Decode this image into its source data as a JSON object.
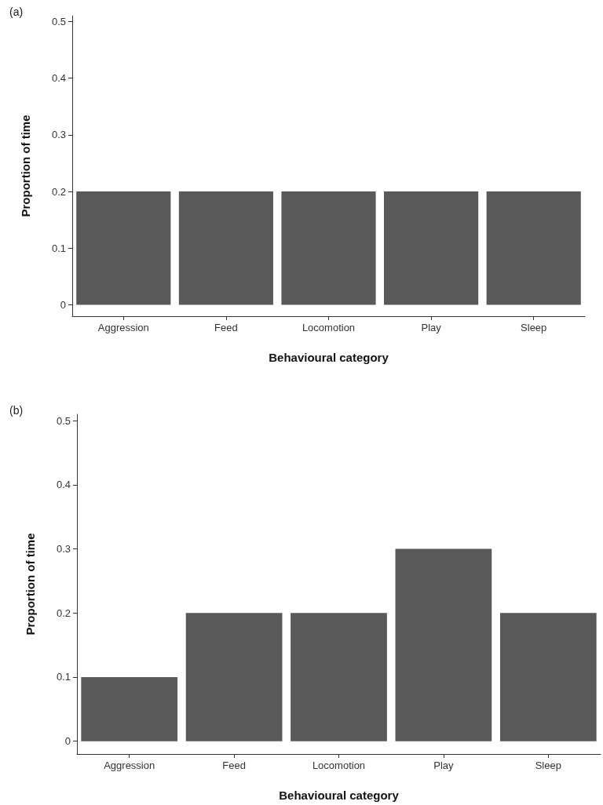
{
  "chart_data": [
    {
      "type": "bar",
      "annotations": [
        "(a)"
      ],
      "xlabel": "Behavioural category",
      "ylabel": "Proportion of time",
      "categories": [
        "Aggression",
        "Feed",
        "Locomotion",
        "Play",
        "Sleep"
      ],
      "values": [
        0.2,
        0.2,
        0.2,
        0.2,
        0.2
      ],
      "color": "#595959",
      "ylim": [
        -0.02,
        0.51
      ],
      "yticks": [
        0,
        0.1,
        0.2,
        0.3,
        0.4,
        0.5
      ],
      "grid": false
    },
    {
      "type": "bar",
      "annotations": [
        "(b)"
      ],
      "xlabel": "Behavioural category",
      "ylabel": "Proportion of time",
      "categories": [
        "Aggression",
        "Feed",
        "Locomotion",
        "Play",
        "Sleep"
      ],
      "values": [
        0.1,
        0.2,
        0.2,
        0.3,
        0.2
      ],
      "color": "#595959",
      "ylim": [
        -0.02,
        0.51
      ],
      "yticks": [
        0,
        0.1,
        0.2,
        0.3,
        0.4,
        0.5
      ],
      "grid": false
    }
  ]
}
